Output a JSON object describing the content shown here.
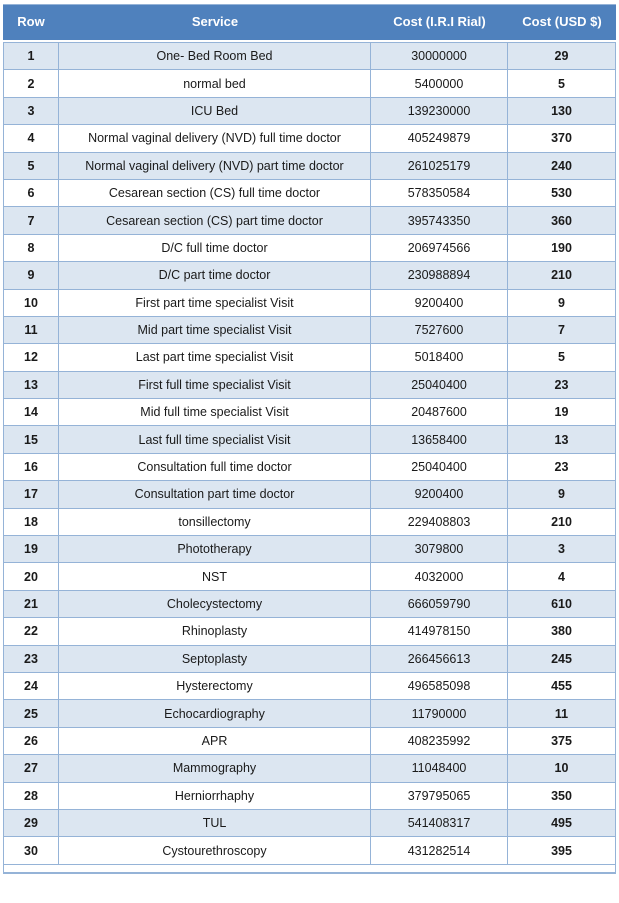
{
  "colors": {
    "header_bg": "#4f81bd",
    "header_text": "#ffffff",
    "stripe_bg": "#dce6f1",
    "border": "#95b3d7",
    "body_text": "#1a1a1a"
  },
  "table": {
    "columns": [
      "Row",
      "Service",
      "Cost (I.R.I Rial)",
      "Cost (USD $)"
    ],
    "rows": [
      {
        "row": "1",
        "service": "One- Bed Room Bed",
        "rial": "30000000",
        "usd": "29"
      },
      {
        "row": "2",
        "service": "normal bed",
        "rial": "5400000",
        "usd": "5"
      },
      {
        "row": "3",
        "service": "ICU Bed",
        "rial": "139230000",
        "usd": "130"
      },
      {
        "row": "4",
        "service": "Normal vaginal delivery (NVD) full time doctor",
        "rial": "405249879",
        "usd": "370"
      },
      {
        "row": "5",
        "service": "Normal vaginal delivery (NVD) part time doctor",
        "rial": "261025179",
        "usd": "240"
      },
      {
        "row": "6",
        "service": "Cesarean section (CS) full time doctor",
        "rial": "578350584",
        "usd": "530"
      },
      {
        "row": "7",
        "service": "Cesarean section (CS) part time doctor",
        "rial": "395743350",
        "usd": "360"
      },
      {
        "row": "8",
        "service": "D/C  full time doctor",
        "rial": "206974566",
        "usd": "190"
      },
      {
        "row": "9",
        "service": "D/C  part  time doctor",
        "rial": "230988894",
        "usd": "210"
      },
      {
        "row": "10",
        "service": "First part  time specialist Visit",
        "rial": "9200400",
        "usd": "9"
      },
      {
        "row": "11",
        "service": "Mid part  time  specialist Visit",
        "rial": "7527600",
        "usd": "7"
      },
      {
        "row": "12",
        "service": "Last part  time specialist Visit",
        "rial": "5018400",
        "usd": "5"
      },
      {
        "row": "13",
        "service": "First full  time specialist Visit",
        "rial": "25040400",
        "usd": "23"
      },
      {
        "row": "14",
        "service": "Mid full  time  specialist Visit",
        "rial": "20487600",
        "usd": "19"
      },
      {
        "row": "15",
        "service": "Last full  time specialist Visit",
        "rial": "13658400",
        "usd": "13"
      },
      {
        "row": "16",
        "service": "Consultation full time doctor",
        "rial": "25040400",
        "usd": "23"
      },
      {
        "row": "17",
        "service": "Consultation part  time doctor",
        "rial": "9200400",
        "usd": "9"
      },
      {
        "row": "18",
        "service": "tonsillectomy",
        "rial": "229408803",
        "usd": "210"
      },
      {
        "row": "19",
        "service": "Phototherapy",
        "rial": "3079800",
        "usd": "3"
      },
      {
        "row": "20",
        "service": "NST",
        "rial": "4032000",
        "usd": "4"
      },
      {
        "row": "21",
        "service": "Cholecystectomy",
        "rial": "666059790",
        "usd": "610"
      },
      {
        "row": "22",
        "service": "Rhinoplasty",
        "rial": "414978150",
        "usd": "380"
      },
      {
        "row": "23",
        "service": "Septoplasty",
        "rial": "266456613",
        "usd": "245"
      },
      {
        "row": "24",
        "service": "Hysterectomy",
        "rial": "496585098",
        "usd": "455"
      },
      {
        "row": "25",
        "service": "Echocardiography",
        "rial": "11790000",
        "usd": "11"
      },
      {
        "row": "26",
        "service": "APR",
        "rial": "408235992",
        "usd": "375"
      },
      {
        "row": "27",
        "service": "Mammography",
        "rial": "11048400",
        "usd": "10"
      },
      {
        "row": "28",
        "service": "Herniorrhaphy",
        "rial": "379795065",
        "usd": "350"
      },
      {
        "row": "29",
        "service": "TUL",
        "rial": "541408317",
        "usd": "495"
      },
      {
        "row": "30",
        "service": "Cystourethroscopy",
        "rial": "431282514",
        "usd": "395"
      }
    ]
  }
}
